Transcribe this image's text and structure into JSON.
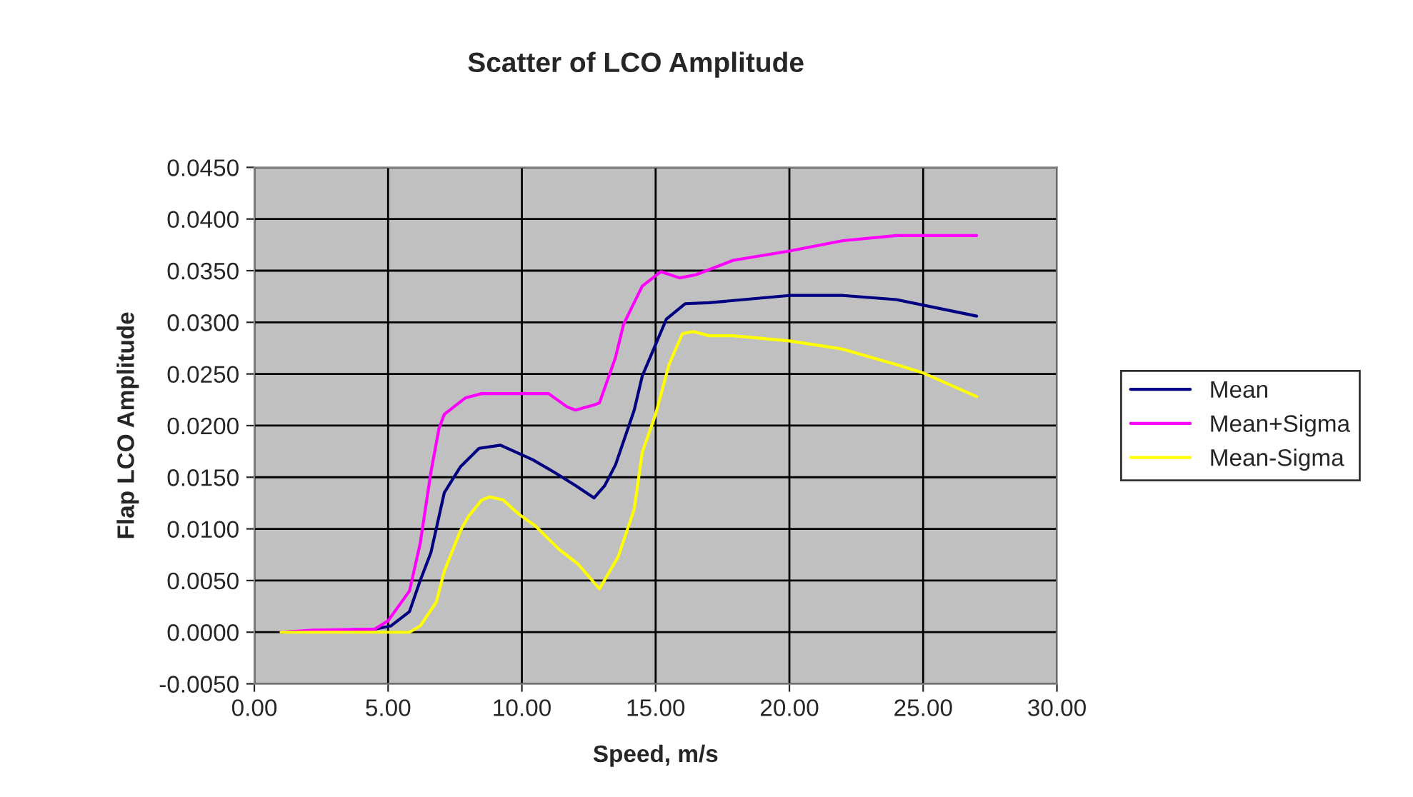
{
  "chart_data": {
    "type": "line",
    "title": "Scatter of LCO Amplitude",
    "xlabel": "Speed, m/s",
    "ylabel": "Flap LCO Amplitude",
    "xlim": [
      0,
      30
    ],
    "xticks": [
      {
        "value": 0,
        "label": "0.00"
      },
      {
        "value": 5,
        "label": "5.00"
      },
      {
        "value": 10,
        "label": "10.00"
      },
      {
        "value": 15,
        "label": "15.00"
      },
      {
        "value": 20,
        "label": "20.00"
      },
      {
        "value": 25,
        "label": "25.00"
      },
      {
        "value": 30,
        "label": "30.00"
      }
    ],
    "ylim": [
      -0.005,
      0.045
    ],
    "yticks": [
      {
        "value": -0.005,
        "label": "-0.0050"
      },
      {
        "value": 0,
        "label": "0.0000"
      },
      {
        "value": 0.005,
        "label": "0.0050"
      },
      {
        "value": 0.01,
        "label": "0.0100"
      },
      {
        "value": 0.015,
        "label": "0.0150"
      },
      {
        "value": 0.02,
        "label": "0.0200"
      },
      {
        "value": 0.025,
        "label": "0.0250"
      },
      {
        "value": 0.03,
        "label": "0.0300"
      },
      {
        "value": 0.035,
        "label": "0.0350"
      },
      {
        "value": 0.04,
        "label": "0.0400"
      },
      {
        "value": 0.045,
        "label": "0.0450"
      }
    ],
    "grid": true,
    "legend": "right",
    "marker": "none",
    "line_style": "solid",
    "series": [
      {
        "name": "Mean",
        "color": "#000080",
        "x": [
          1,
          4.5,
          5.1,
          5.8,
          6.2,
          6.6,
          7.1,
          7.7,
          8.4,
          9.2,
          10.4,
          11.2,
          12,
          12.7,
          13.1,
          13.5,
          14.2,
          14.5,
          15.4,
          16.1,
          17,
          20,
          22,
          24,
          27
        ],
        "values": [
          0,
          0.0003,
          0.0006,
          0.002,
          0.005,
          0.0077,
          0.0135,
          0.016,
          0.0178,
          0.0181,
          0.0167,
          0.0155,
          0.0142,
          0.013,
          0.0142,
          0.0162,
          0.0215,
          0.0248,
          0.0303,
          0.0318,
          0.0319,
          0.0326,
          0.0326,
          0.0322,
          0.0306
        ]
      },
      {
        "name": "Mean+Sigma",
        "color": "#ff00ff",
        "x": [
          1,
          2.2,
          4.5,
          5,
          5.8,
          6.2,
          6.6,
          6.9,
          7.1,
          7.9,
          8.5,
          11,
          11.7,
          12,
          12.7,
          12.9,
          13.5,
          13.8,
          14.5,
          15.2,
          15.9,
          16.5,
          17.9,
          20,
          22,
          24,
          27
        ],
        "values": [
          0,
          0.0002,
          0.0003,
          0.0011,
          0.004,
          0.0086,
          0.0155,
          0.0197,
          0.0211,
          0.0227,
          0.0231,
          0.0231,
          0.0218,
          0.0215,
          0.022,
          0.0222,
          0.0266,
          0.0298,
          0.0335,
          0.0349,
          0.0343,
          0.0346,
          0.036,
          0.0369,
          0.0379,
          0.0384,
          0.0384
        ]
      },
      {
        "name": "Mean-Sigma",
        "color": "#ffff00",
        "x": [
          1,
          5.8,
          6.2,
          6.8,
          7.1,
          7.7,
          8,
          8.5,
          8.8,
          9.3,
          9.9,
          10.5,
          11.4,
          12.1,
          12.5,
          12.9,
          13.6,
          14.2,
          14.5,
          15,
          15.5,
          16,
          16.4,
          17,
          17.9,
          20,
          22,
          24,
          25,
          27
        ],
        "values": [
          0,
          0,
          0.0006,
          0.0029,
          0.0059,
          0.0098,
          0.0112,
          0.0128,
          0.0131,
          0.0128,
          0.0114,
          0.0103,
          0.008,
          0.0066,
          0.0054,
          0.0042,
          0.0073,
          0.0119,
          0.0174,
          0.0211,
          0.0259,
          0.0289,
          0.0291,
          0.0287,
          0.0287,
          0.0282,
          0.0274,
          0.0259,
          0.0251,
          0.0228
        ]
      }
    ]
  }
}
